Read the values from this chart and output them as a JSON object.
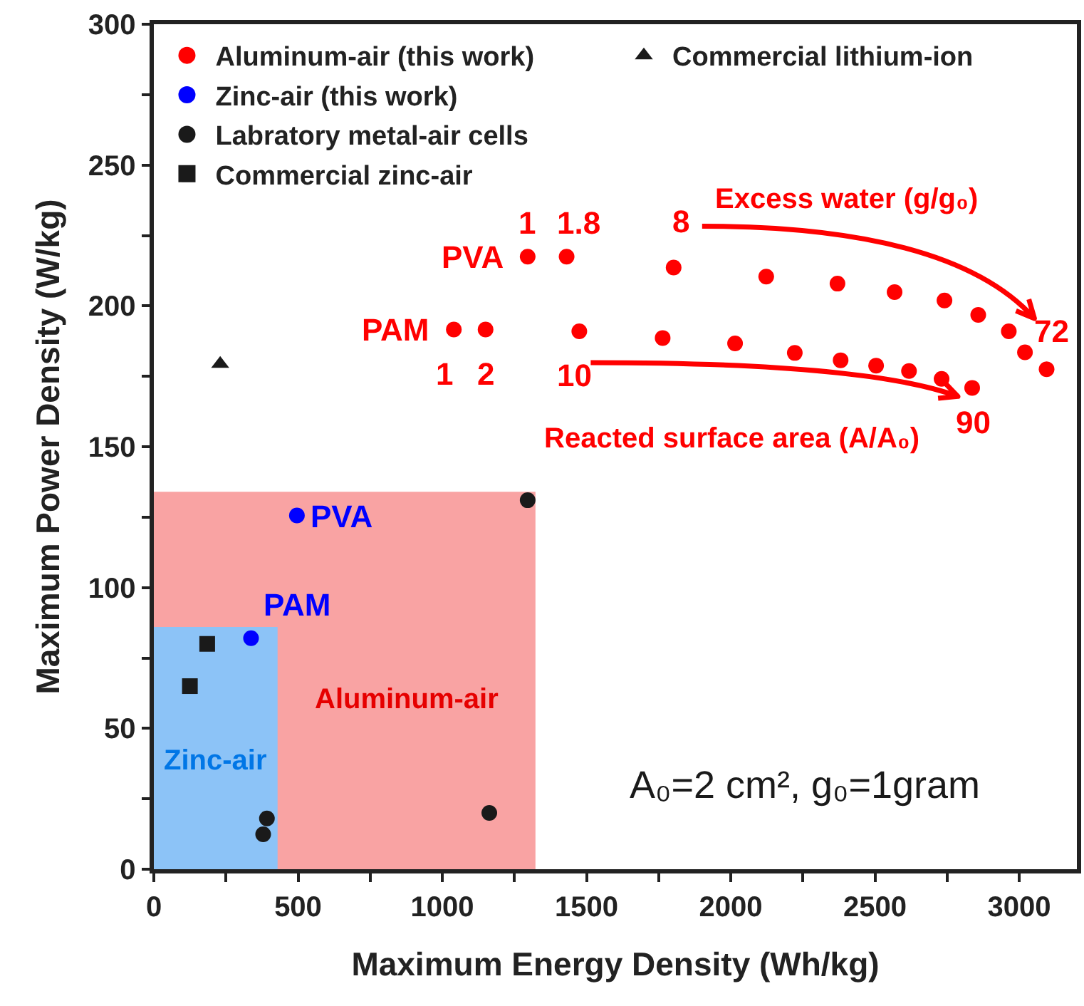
{
  "chart_data": {
    "type": "scatter",
    "xlabel": "Maximum Energy Density (Wh/kg)",
    "ylabel": "Maximum Power Density (W/kg)",
    "xlim": [
      0,
      3200
    ],
    "ylim": [
      0,
      300
    ],
    "xticks": [
      0,
      {
        "value": 250,
        "label": null
      },
      500,
      {
        "value": 750,
        "label": null
      },
      1000,
      {
        "value": 1250,
        "label": null
      },
      1500,
      {
        "value": 1750,
        "label": null
      },
      2000,
      {
        "value": 2250,
        "label": null
      },
      2500,
      {
        "value": 2750,
        "label": null
      },
      3000
    ],
    "yticks": [
      0,
      {
        "value": 25,
        "label": null
      },
      50,
      {
        "value": 75,
        "label": null
      },
      100,
      {
        "value": 125,
        "label": null
      },
      150,
      {
        "value": 175,
        "label": null
      },
      200,
      {
        "value": 225,
        "label": null
      },
      250,
      {
        "value": 275,
        "label": null
      },
      300
    ],
    "grid": false,
    "legend": "top left",
    "series": [
      {
        "type": "area",
        "name": "Aluminum-air",
        "color": "#f9a3a3",
        "x": [
          0,
          1323,
          1323
        ],
        "values": [
          134,
          134,
          0
        ]
      },
      {
        "type": "area",
        "name": "Zinc-air",
        "color": "#8cc3f7",
        "x": [
          0,
          429,
          429
        ],
        "values": [
          86,
          86,
          0
        ]
      },
      {
        "name": "Aluminum-air (this work)",
        "color": "#ff0000",
        "marker": "circle",
        "x": [
          1296,
          1431,
          1802,
          2123,
          2370,
          2568,
          2741,
          2858,
          2964,
          3020,
          3095,
          1040,
          1150,
          1475,
          1764,
          2015,
          2222,
          2381,
          2504,
          2618,
          2731,
          2837
        ],
        "values": [
          217.5,
          217.5,
          213.6,
          210.4,
          207.9,
          204.9,
          201.9,
          196.8,
          191,
          183.5,
          177.5,
          191.6,
          191.6,
          191,
          188.6,
          186.7,
          183.3,
          180.7,
          178.8,
          176.9,
          174.1,
          170.9
        ]
      },
      {
        "name": "Zinc-air (this work)",
        "color": "#0000ff",
        "marker": "circle",
        "x": [
          496,
          337
        ],
        "values": [
          125.6,
          82
        ]
      },
      {
        "name": "Labratory metal-air cells",
        "color": "#1a1a1a",
        "marker": "circle",
        "x": [
          1296,
          392,
          379,
          1163
        ],
        "values": [
          131,
          18,
          12.4,
          20
        ]
      },
      {
        "name": "Commercial zinc-air",
        "color": "#1a1a1a",
        "marker": "square",
        "x": [
          185,
          125
        ],
        "values": [
          80,
          65
        ]
      },
      {
        "name": "Commercial lithium-ion",
        "color": "#1a1a1a",
        "marker": "triangle",
        "x": [
          230
        ],
        "values": [
          179.4
        ]
      }
    ],
    "annotations": [
      {
        "text": "1",
        "x": 1296,
        "y": 217.5
      },
      {
        "text": "1.8",
        "x": 1431,
        "y": 217.5
      },
      {
        "text": "8",
        "x": 1802,
        "y": 213.6
      },
      {
        "text": "72",
        "x": 2964,
        "y": 191
      },
      {
        "text": "PVA",
        "x": 1296,
        "y": 217.5
      },
      {
        "text": "PAM",
        "x": 1040,
        "y": 191.6
      },
      {
        "text": "1",
        "x": 1040,
        "y": 191.6
      },
      {
        "text": "2",
        "x": 1150,
        "y": 191.6
      },
      {
        "text": "10",
        "x": 1475,
        "y": 191
      },
      {
        "text": "90",
        "x": 2837,
        "y": 170.9
      },
      {
        "text": "PVA",
        "x": 496,
        "y": 125.6
      },
      {
        "text": "PAM",
        "x": 337,
        "y": 82
      },
      "Excess water (g/g₀)",
      "Reacted surface area (A/A₀)",
      "A₀=2 cm², g₀=1gram"
    ]
  }
}
